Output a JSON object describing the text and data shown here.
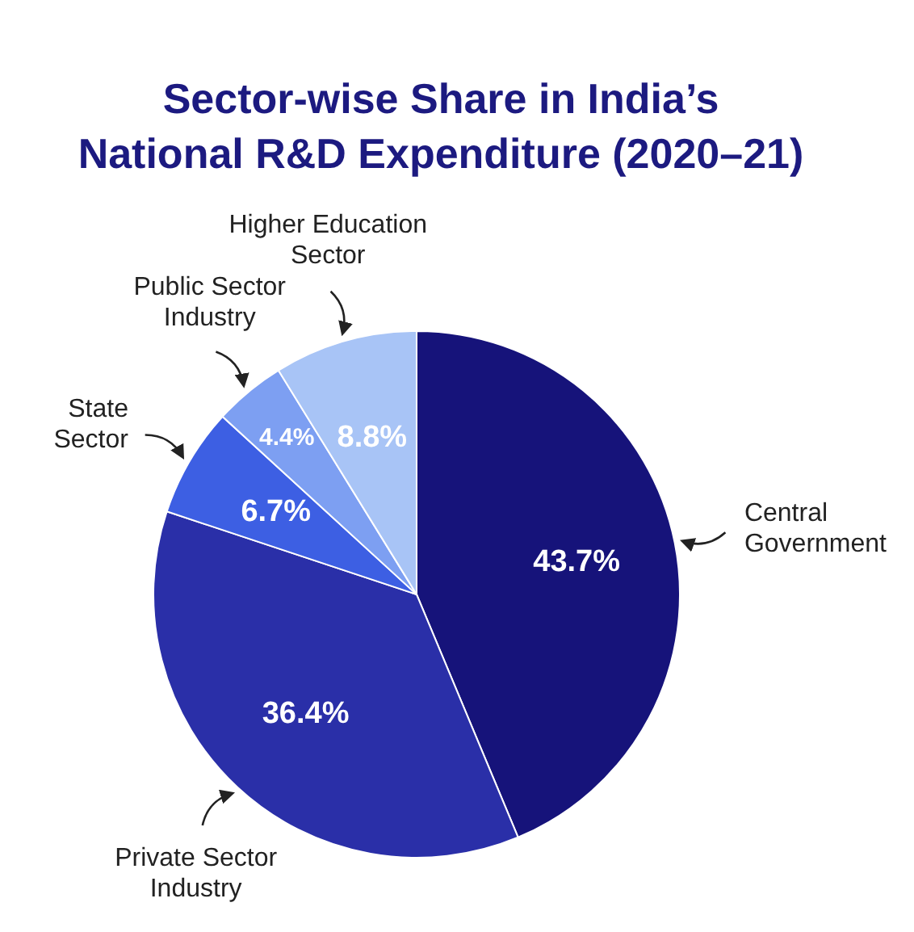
{
  "chart_data": {
    "type": "pie",
    "title": "Sector-wise Share in India’s National R&D Expenditure (2020–21)",
    "categories": [
      "Central Government",
      "Private Sector Industry",
      "State Sector",
      "Public Sector Industry",
      "Higher Education Sector"
    ],
    "values": [
      43.7,
      36.4,
      6.7,
      4.4,
      8.8
    ],
    "colors": [
      "#16137a",
      "#2a2fa8",
      "#3d5fe3",
      "#7d9ff2",
      "#a8c4f6"
    ],
    "value_labels": [
      "43.7%",
      "36.4%",
      "6.7%",
      "4.4%",
      "8.8%"
    ]
  }
}
